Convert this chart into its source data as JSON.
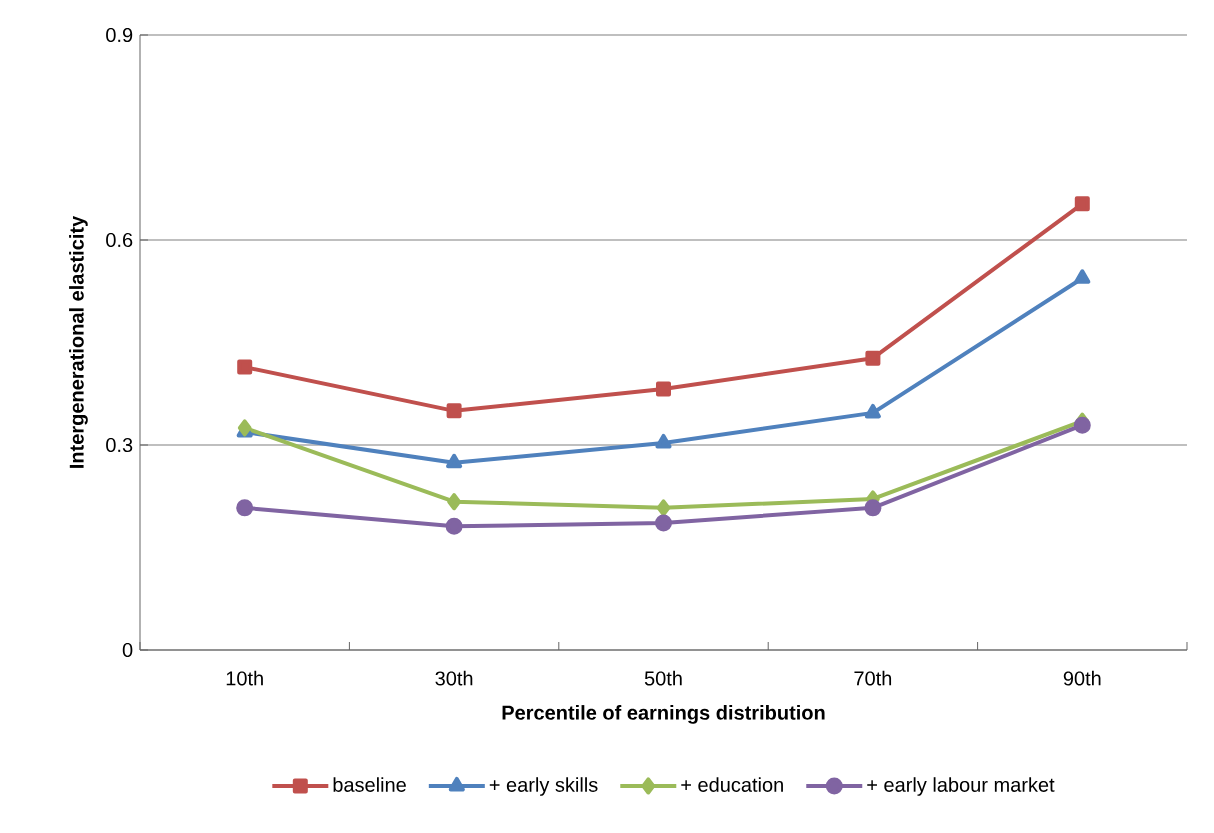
{
  "chart_data": {
    "type": "line",
    "xlabel": "Percentile of earnings distribution",
    "ylabel": "Intergenerational elasticity",
    "categories": [
      "10th",
      "30th",
      "50th",
      "70th",
      "90th"
    ],
    "series": [
      {
        "name": "baseline",
        "color": "#c0504d",
        "marker": "square",
        "values": [
          0.414,
          0.35,
          0.382,
          0.427,
          0.653
        ]
      },
      {
        "name": "+ early skills",
        "color": "#4f81bd",
        "marker": "triangle",
        "values": [
          0.319,
          0.274,
          0.303,
          0.347,
          0.544
        ]
      },
      {
        "name": "+ education",
        "color": "#9bbb59",
        "marker": "diamond",
        "values": [
          0.325,
          0.217,
          0.208,
          0.221,
          0.335
        ]
      },
      {
        "name": "+ early labour market",
        "color": "#8064a2",
        "marker": "circle",
        "values": [
          0.208,
          0.181,
          0.186,
          0.208,
          0.329
        ]
      }
    ],
    "ylim": [
      0,
      0.9
    ],
    "yticks": [
      0,
      0.3,
      0.6,
      0.9
    ],
    "grid": "y",
    "legend": "bottom",
    "line_style": "solid"
  }
}
